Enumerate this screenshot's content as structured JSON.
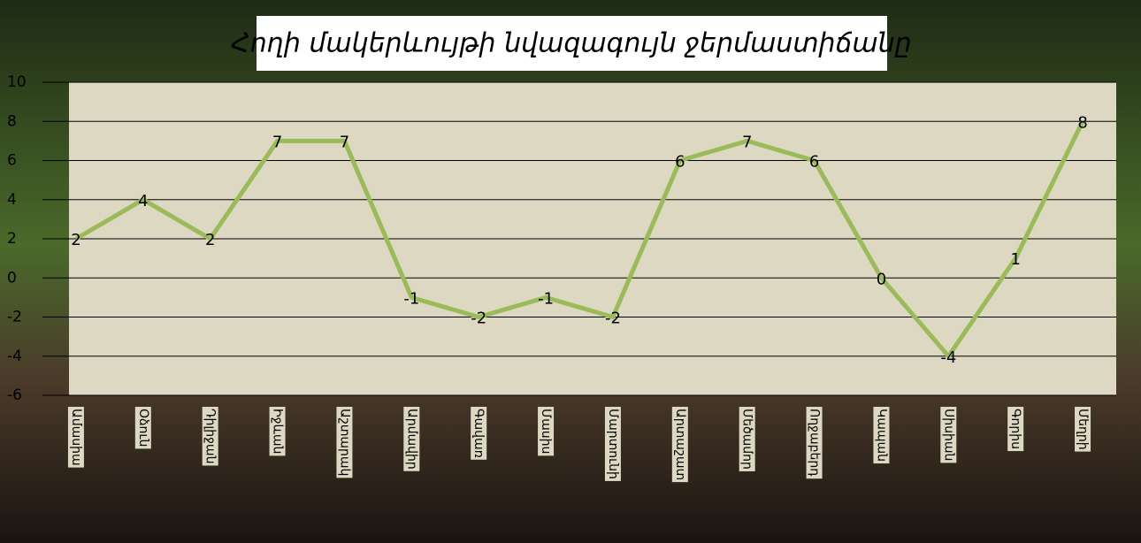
{
  "chart_data": {
    "type": "line",
    "title": "Հողի մակերևույթի նվազագույն ջերմաստիճանը",
    "categories": [
      "Ամասիա",
      "Օձուն",
      "Դիլիջան",
      "Իջևան",
      "Աշտարակ",
      "Արմավիր",
      "Գավառ",
      "Մասիս",
      "Մարտունի",
      "Արտաշատ",
      "Մեծամոր",
      "Ողջաբերդ",
      "Կապան",
      "Սիսիան",
      "Գորիս",
      "Մեղրի"
    ],
    "values": [
      2,
      4,
      2,
      7,
      7,
      -1,
      -2,
      -1,
      -2,
      6,
      7,
      6,
      0,
      -4,
      1,
      8
    ],
    "color": "#9bbb59",
    "ylim": [
      -6,
      10
    ],
    "yticks": [
      -6,
      -4,
      -2,
      0,
      2,
      4,
      6,
      8,
      10
    ],
    "grid": true
  }
}
